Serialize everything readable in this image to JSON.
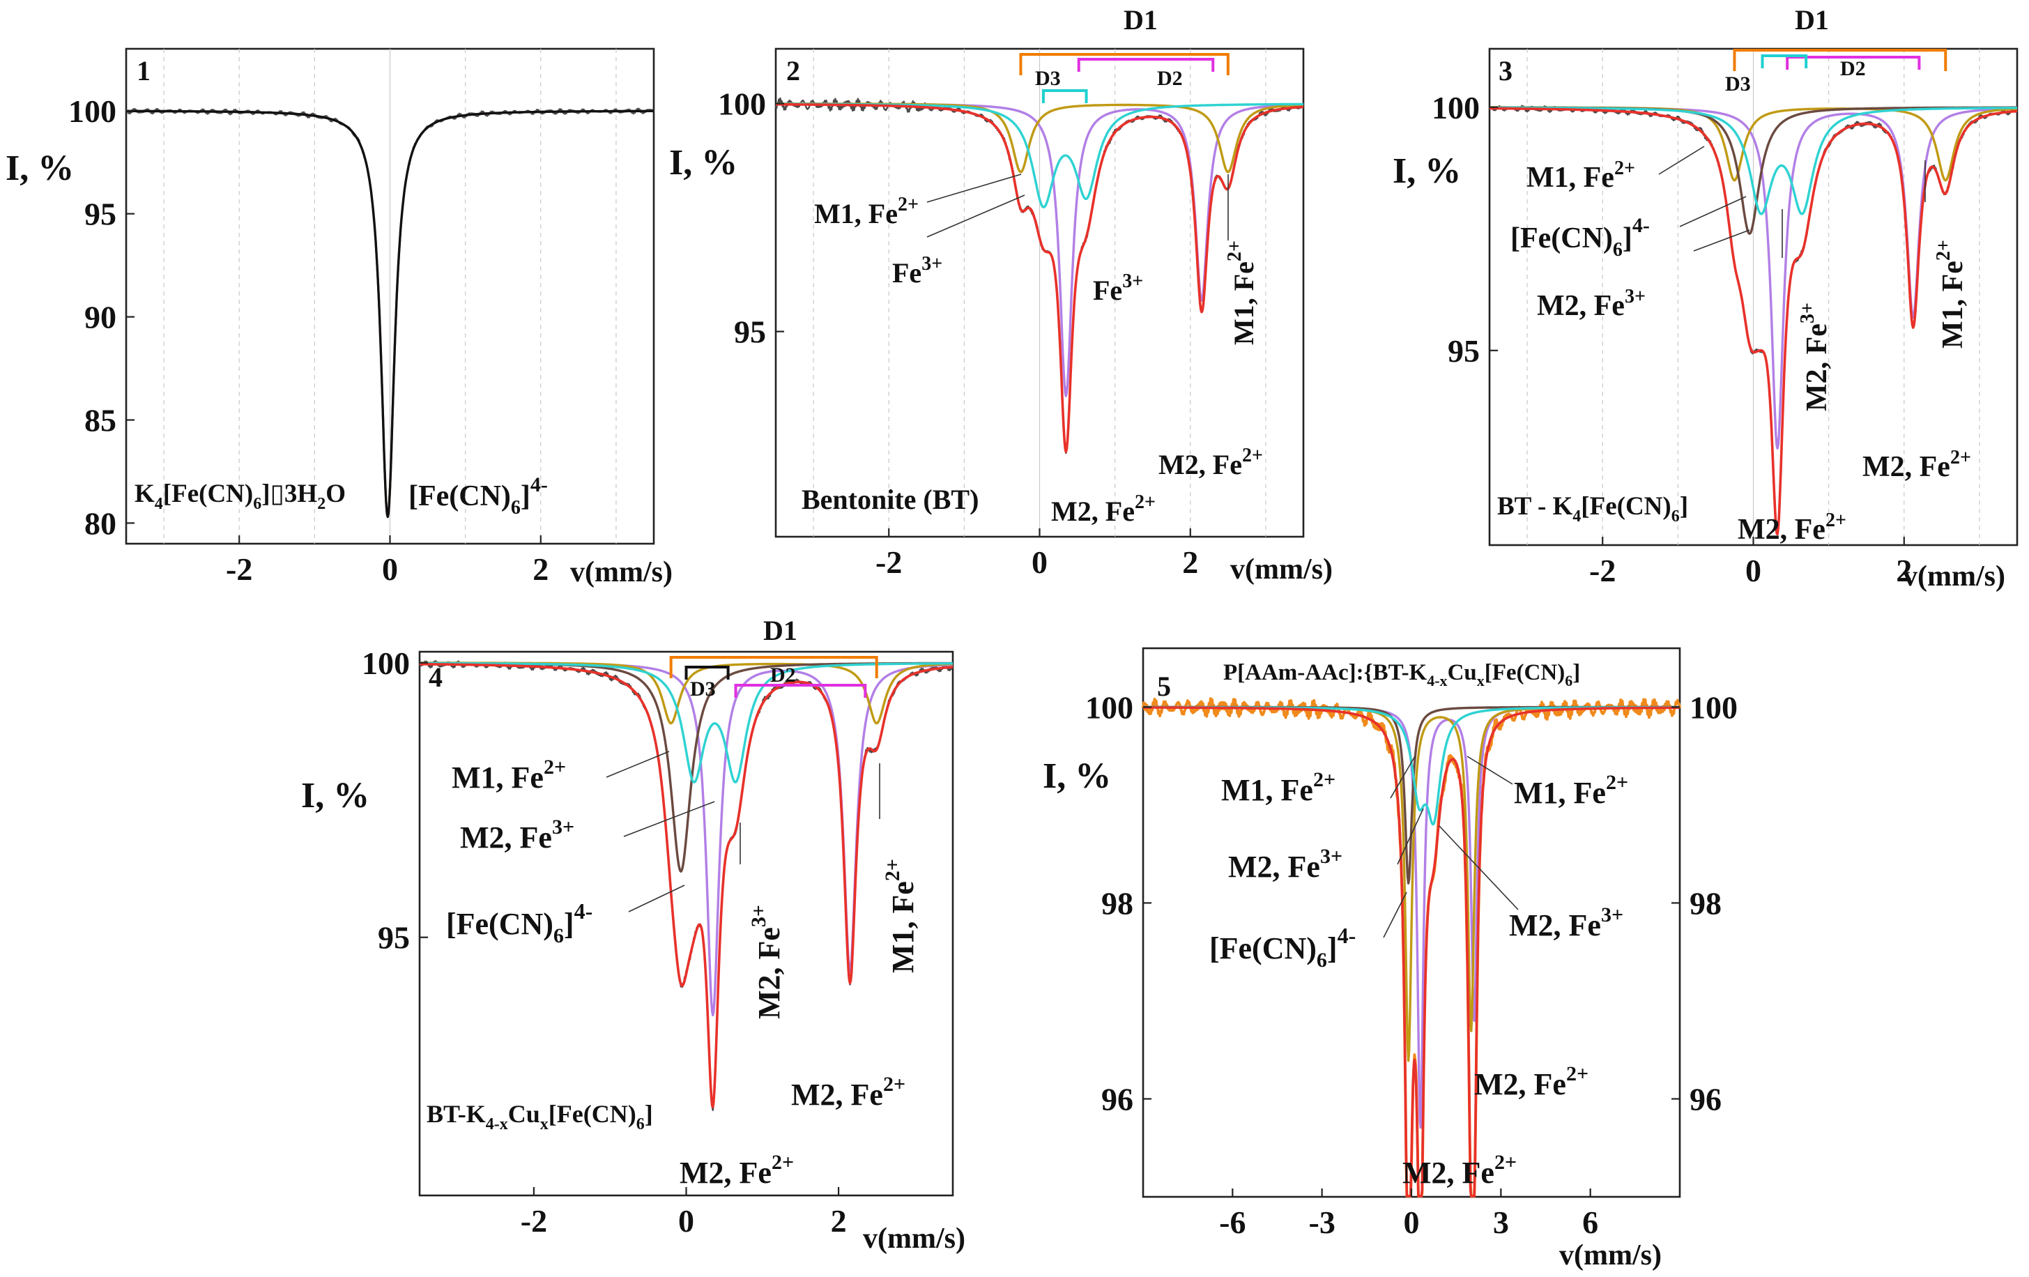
{
  "colors": {
    "experimental": "#4a4a4a",
    "fit": "#e8312a",
    "M2_Fe2": "#b27fe6",
    "M1_Fe2": "#c09a14",
    "M2_Fe3": "#2fd2d2",
    "FeCN6": "#6b4a40",
    "panel5_experimental": "#f08a1c",
    "D1_bracket": "#f07c00",
    "D2_bracket": "#e030e0",
    "D3_bracket": "#20d0d0"
  },
  "chart_data": [
    {
      "type": "line",
      "panel": "1",
      "title": "",
      "xlabel": "v(mm/s)",
      "ylabel": "I, %",
      "xlim": [
        -3.5,
        3.5
      ],
      "ylim": [
        79,
        103
      ],
      "x_ticks": [
        -2,
        0,
        2
      ],
      "y_ticks": [
        80,
        85,
        90,
        95,
        100
      ],
      "grid_x": [
        -3,
        -2,
        -1,
        0,
        1,
        2,
        3
      ],
      "sample_label": "K4[Fe(CN)6]3H2O",
      "series": [
        {
          "name": "[Fe(CN)6]4-",
          "component": "FeCN6",
          "kind": "singlet",
          "isomer_shift": -0.03,
          "depth": 19.7,
          "hwhm": 0.11
        }
      ],
      "annotations": [
        {
          "text": "[Fe(CN)6]4-"
        }
      ]
    },
    {
      "type": "line",
      "panel": "2",
      "xlabel": "v(mm/s)",
      "ylabel": "I, %",
      "xlim": [
        -3.5,
        3.5
      ],
      "ylim": [
        90.5,
        101.2
      ],
      "x_ticks": [
        -2,
        0,
        2
      ],
      "y_ticks": [
        95,
        100
      ],
      "grid_x": [
        -3,
        -2,
        -1,
        0,
        1,
        2,
        3
      ],
      "sample_label": "Bentonite (BT)",
      "series": [
        {
          "name": "M2, Fe2+ (D2)",
          "component": "M2_Fe2",
          "kind": "doublet",
          "lines": [
            0.35,
            2.15
          ],
          "depths": [
            6.4,
            4.3
          ],
          "hwhm": 0.1
        },
        {
          "name": "M1, Fe2+ (D1)",
          "component": "M1_Fe2",
          "kind": "doublet",
          "lines": [
            -0.25,
            2.5
          ],
          "depths": [
            1.5,
            1.5
          ],
          "hwhm": 0.14
        },
        {
          "name": "M2, Fe3+ (D3)",
          "component": "M2_Fe3",
          "kind": "doublet",
          "lines": [
            0.05,
            0.62
          ],
          "depths": [
            2.1,
            1.9
          ],
          "hwhm": 0.18
        }
      ],
      "brackets": [
        {
          "label": "D1",
          "from": -0.25,
          "to": 2.5,
          "color": "D1_bracket"
        },
        {
          "label": "D2",
          "from": 0.52,
          "to": 2.3,
          "color": "D2_bracket"
        },
        {
          "label": "D3",
          "from": 0.05,
          "to": 0.62,
          "color": "D3_bracket"
        }
      ],
      "annotations": [
        {
          "text": "M1, Fe2+"
        },
        {
          "text": "Fe3+"
        },
        {
          "text": "Fe3+"
        },
        {
          "text": "M1, Fe2+"
        },
        {
          "text": "M2, Fe2+"
        },
        {
          "text": "M2, Fe2+"
        }
      ]
    },
    {
      "type": "line",
      "panel": "3",
      "xlabel": "v(mm/s)",
      "ylabel": "I, %",
      "xlim": [
        -3.5,
        3.5
      ],
      "ylim": [
        91,
        101.2
      ],
      "x_ticks": [
        -2,
        0,
        2
      ],
      "y_ticks": [
        95,
        100
      ],
      "grid_x": [
        -3,
        -2,
        -1,
        0,
        1,
        2,
        3
      ],
      "sample_label": "BT - K4[Fe(CN)6]",
      "series": [
        {
          "name": "M2, Fe2+ (D2)",
          "component": "M2_Fe2",
          "kind": "doublet",
          "lines": [
            0.32,
            2.12
          ],
          "depths": [
            7.0,
            4.3
          ],
          "hwhm": 0.1
        },
        {
          "name": "M1, Fe2+ (D1)",
          "component": "M1_Fe2",
          "kind": "doublet",
          "lines": [
            -0.25,
            2.55
          ],
          "depths": [
            1.5,
            1.5
          ],
          "hwhm": 0.14
        },
        {
          "name": "[Fe(CN)6]4-",
          "component": "FeCN6",
          "kind": "singlet",
          "isomer_shift": -0.05,
          "depth": 2.6,
          "hwhm": 0.16
        },
        {
          "name": "M2, Fe3+ (D3)",
          "component": "M2_Fe3",
          "kind": "doublet",
          "lines": [
            0.1,
            0.65
          ],
          "depths": [
            2.0,
            2.0
          ],
          "hwhm": 0.18
        }
      ],
      "brackets": [
        {
          "label": "D1",
          "from": -0.25,
          "to": 2.55,
          "color": "D1_bracket"
        },
        {
          "label": "D2",
          "from": 0.45,
          "to": 2.2,
          "color": "D2_bracket"
        },
        {
          "label": "D3",
          "from": 0.12,
          "to": 0.7,
          "color": "D3_bracket"
        }
      ],
      "annotations": [
        {
          "text": "M1, Fe2+"
        },
        {
          "text": "[Fe(CN)6]4-"
        },
        {
          "text": "M2, Fe3+"
        },
        {
          "text": "M2, Fe3+"
        },
        {
          "text": "M1, Fe2+"
        },
        {
          "text": "M2, Fe2+"
        },
        {
          "text": "M2, Fe2+"
        }
      ]
    },
    {
      "type": "line",
      "panel": "4",
      "xlabel": "v(mm/s)",
      "ylabel": "I, %",
      "xlim": [
        -3.5,
        3.5
      ],
      "ylim": [
        90.3,
        100.2
      ],
      "x_ticks": [
        -2,
        0,
        2
      ],
      "y_ticks": [
        95,
        100
      ],
      "grid_x": [],
      "sample_label": "BT-K4-xCux[Fe(CN)6]",
      "series": [
        {
          "name": "M2, Fe2+ (D2)",
          "component": "M2_Fe2",
          "kind": "doublet",
          "lines": [
            0.35,
            2.15
          ],
          "depths": [
            6.4,
            5.6
          ],
          "hwhm": 0.1
        },
        {
          "name": "M1, Fe2+ (D1)",
          "component": "M1_Fe2",
          "kind": "doublet",
          "lines": [
            -0.2,
            2.5
          ],
          "depths": [
            1.1,
            1.1
          ],
          "hwhm": 0.14
        },
        {
          "name": "[Fe(CN)6]4-",
          "component": "FeCN6",
          "kind": "singlet",
          "isomer_shift": -0.07,
          "depth": 3.8,
          "hwhm": 0.16
        },
        {
          "name": "M2, Fe3+ (D3)",
          "component": "M2_Fe3",
          "kind": "doublet",
          "lines": [
            0.1,
            0.65
          ],
          "depths": [
            2.0,
            2.0
          ],
          "hwhm": 0.17
        }
      ],
      "brackets": [
        {
          "label": "D1",
          "from": -0.2,
          "to": 2.5,
          "color": "D1_bracket"
        },
        {
          "label": "D2",
          "from": 0.65,
          "to": 2.35,
          "color": "D2_bracket"
        },
        {
          "label": "D3",
          "from": 0.0,
          "to": 0.55,
          "color": "#111111"
        }
      ],
      "annotations": [
        {
          "text": "M1, Fe2+"
        },
        {
          "text": "M2, Fe3+"
        },
        {
          "text": "[Fe(CN)6]4-"
        },
        {
          "text": "M2, Fe3+"
        },
        {
          "text": "M1, Fe2+"
        },
        {
          "text": "M2, Fe2+"
        },
        {
          "text": "M2, Fe2+"
        }
      ]
    },
    {
      "type": "line",
      "panel": "5",
      "xlabel": "v(mm/s)",
      "ylabel": "I, %",
      "xlim": [
        -9,
        9
      ],
      "ylim": [
        95.0,
        100.6
      ],
      "x_ticks": [
        -6,
        -3,
        0,
        3,
        6
      ],
      "y_ticks": [
        96,
        98,
        100
      ],
      "y_ticks_right": [
        96,
        98,
        100
      ],
      "grid_x": [],
      "sample_label": "P[AAm-AAc]:{BT-K4-xCux[Fe(CN)6]",
      "series": [
        {
          "name": "M2, Fe2+ (D2)",
          "component": "M2_Fe2",
          "kind": "doublet",
          "lines": [
            0.3,
            2.1
          ],
          "depths": [
            4.3,
            3.2
          ],
          "hwhm": 0.12
        },
        {
          "name": "M1, Fe2+ (D1)",
          "component": "M1_Fe2",
          "kind": "doublet",
          "lines": [
            -0.1,
            2.0
          ],
          "depths": [
            3.6,
            3.3
          ],
          "hwhm": 0.13
        },
        {
          "name": "[Fe(CN)6]4-",
          "component": "FeCN6",
          "kind": "singlet",
          "isomer_shift": -0.1,
          "depth": 1.8,
          "hwhm": 0.14
        },
        {
          "name": "M2, Fe3+ (D3)",
          "component": "M2_Fe3",
          "kind": "doublet",
          "lines": [
            0.25,
            0.75
          ],
          "depths": [
            0.8,
            1.0
          ],
          "hwhm": 0.28
        }
      ],
      "annotations": [
        {
          "text": "M1, Fe2+"
        },
        {
          "text": "M2, Fe3+"
        },
        {
          "text": "[Fe(CN)6]4-"
        },
        {
          "text": "M1, Fe2+"
        },
        {
          "text": "M2, Fe3+"
        },
        {
          "text": "M2, Fe2+"
        },
        {
          "text": "M2, Fe2+"
        }
      ]
    }
  ]
}
